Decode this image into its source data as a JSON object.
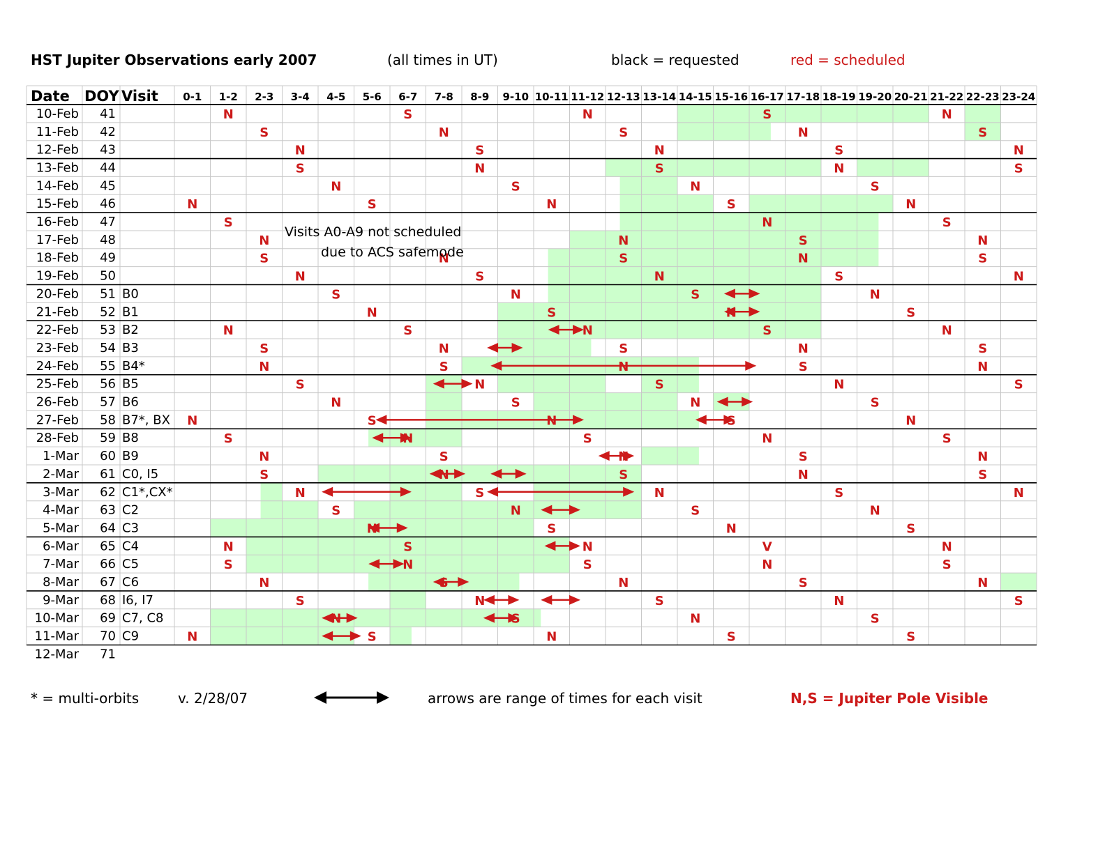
{
  "header": {
    "title": "HST Jupiter Observations early 2007",
    "timezone_note": "(all times in UT)",
    "legend_requested": "black = requested",
    "legend_scheduled": "red = scheduled"
  },
  "colors": {
    "scheduled": "#cc1a1a",
    "window": "#ccffcc",
    "grid": "#c8c8c8",
    "separator": "#000000"
  },
  "table": {
    "headers": {
      "date": "Date",
      "doy": "DOY",
      "visit": "Visit"
    },
    "hours": [
      "0-1",
      "1-2",
      "2-3",
      "3-4",
      "4-5",
      "5-6",
      "6-7",
      "7-8",
      "8-9",
      "9-10",
      "10-11",
      "11-12",
      "12-13",
      "13-14",
      "14-15",
      "15-16",
      "16-17",
      "17-18",
      "18-19",
      "19-20",
      "20-21",
      "21-22",
      "22-23",
      "23-24"
    ],
    "rows": [
      {
        "date": "10-Feb",
        "doy": "41",
        "visit": ""
      },
      {
        "date": "11-Feb",
        "doy": "42",
        "visit": ""
      },
      {
        "date": "12-Feb",
        "doy": "43",
        "visit": ""
      },
      {
        "date": "13-Feb",
        "doy": "44",
        "visit": ""
      },
      {
        "date": "14-Feb",
        "doy": "45",
        "visit": ""
      },
      {
        "date": "15-Feb",
        "doy": "46",
        "visit": ""
      },
      {
        "date": "16-Feb",
        "doy": "47",
        "visit": ""
      },
      {
        "date": "17-Feb",
        "doy": "48",
        "visit": ""
      },
      {
        "date": "18-Feb",
        "doy": "49",
        "visit": ""
      },
      {
        "date": "19-Feb",
        "doy": "50",
        "visit": ""
      },
      {
        "date": "20-Feb",
        "doy": "51",
        "visit": "B0"
      },
      {
        "date": "21-Feb",
        "doy": "52",
        "visit": "B1"
      },
      {
        "date": "22-Feb",
        "doy": "53",
        "visit": "B2"
      },
      {
        "date": "23-Feb",
        "doy": "54",
        "visit": "B3"
      },
      {
        "date": "24-Feb",
        "doy": "55",
        "visit": "B4*"
      },
      {
        "date": "25-Feb",
        "doy": "56",
        "visit": "B5"
      },
      {
        "date": "26-Feb",
        "doy": "57",
        "visit": "B6"
      },
      {
        "date": "27-Feb",
        "doy": "58",
        "visit": "B7*, BX"
      },
      {
        "date": "28-Feb",
        "doy": "59",
        "visit": "B8"
      },
      {
        "date": "1-Mar",
        "doy": "60",
        "visit": "B9"
      },
      {
        "date": "2-Mar",
        "doy": "61",
        "visit": "C0, I5"
      },
      {
        "date": "3-Mar",
        "doy": "62",
        "visit": "C1*,CX*"
      },
      {
        "date": "4-Mar",
        "doy": "63",
        "visit": "C2"
      },
      {
        "date": "5-Mar",
        "doy": "64",
        "visit": "C3"
      },
      {
        "date": "6-Mar",
        "doy": "65",
        "visit": "C4"
      },
      {
        "date": "7-Mar",
        "doy": "66",
        "visit": "C5"
      },
      {
        "date": "8-Mar",
        "doy": "67",
        "visit": "C6"
      },
      {
        "date": "9-Mar",
        "doy": "68",
        "visit": "I6, I7"
      },
      {
        "date": "10-Mar",
        "doy": "69",
        "visit": "C7, C8"
      },
      {
        "date": "11-Mar",
        "doy": "70",
        "visit": "C9"
      },
      {
        "date": "12-Mar",
        "doy": "71",
        "visit": ""
      }
    ],
    "week_separators_after_rows": [
      2,
      5,
      9,
      11,
      14,
      17,
      20,
      23,
      26,
      29
    ],
    "pole_marks": [
      [
        0,
        1,
        "N"
      ],
      [
        0,
        6,
        "S"
      ],
      [
        0,
        11,
        "N"
      ],
      [
        0,
        16,
        "S"
      ],
      [
        0,
        21,
        "N"
      ],
      [
        1,
        2,
        "S"
      ],
      [
        1,
        7,
        "N"
      ],
      [
        1,
        12,
        "S"
      ],
      [
        1,
        17,
        "N"
      ],
      [
        1,
        22,
        "S"
      ],
      [
        2,
        3,
        "N"
      ],
      [
        2,
        8,
        "S"
      ],
      [
        2,
        13,
        "N"
      ],
      [
        2,
        18,
        "S"
      ],
      [
        2,
        23,
        "N"
      ],
      [
        3,
        3,
        "S"
      ],
      [
        3,
        8,
        "N"
      ],
      [
        3,
        13,
        "S"
      ],
      [
        3,
        18,
        "N"
      ],
      [
        3,
        23,
        "S"
      ],
      [
        4,
        4,
        "N"
      ],
      [
        4,
        9,
        "S"
      ],
      [
        4,
        14,
        "N"
      ],
      [
        4,
        19,
        "S"
      ],
      [
        5,
        0,
        "N"
      ],
      [
        5,
        5,
        "S"
      ],
      [
        5,
        10,
        "N"
      ],
      [
        5,
        15,
        "S"
      ],
      [
        5,
        20,
        "N"
      ],
      [
        6,
        1,
        "S"
      ],
      [
        6,
        16,
        "N"
      ],
      [
        6,
        21,
        "S"
      ],
      [
        7,
        2,
        "N"
      ],
      [
        7,
        12,
        "N"
      ],
      [
        7,
        17,
        "S"
      ],
      [
        7,
        22,
        "N"
      ],
      [
        8,
        2,
        "S"
      ],
      [
        8,
        7,
        "N"
      ],
      [
        8,
        12,
        "S"
      ],
      [
        8,
        17,
        "N"
      ],
      [
        8,
        22,
        "S"
      ],
      [
        9,
        3,
        "N"
      ],
      [
        9,
        8,
        "S"
      ],
      [
        9,
        13,
        "N"
      ],
      [
        9,
        18,
        "S"
      ],
      [
        9,
        23,
        "N"
      ],
      [
        10,
        4,
        "S"
      ],
      [
        10,
        9,
        "N"
      ],
      [
        10,
        14,
        "S"
      ],
      [
        10,
        19,
        "N"
      ],
      [
        11,
        5,
        "N"
      ],
      [
        11,
        10,
        "S"
      ],
      [
        11,
        15,
        "N"
      ],
      [
        11,
        20,
        "S"
      ],
      [
        12,
        1,
        "N"
      ],
      [
        12,
        6,
        "S"
      ],
      [
        12,
        11,
        "N"
      ],
      [
        12,
        16,
        "S"
      ],
      [
        12,
        21,
        "N"
      ],
      [
        13,
        2,
        "S"
      ],
      [
        13,
        7,
        "N"
      ],
      [
        13,
        12,
        "S"
      ],
      [
        13,
        17,
        "N"
      ],
      [
        13,
        22,
        "S"
      ],
      [
        14,
        2,
        "N"
      ],
      [
        14,
        7,
        "S"
      ],
      [
        14,
        12,
        "N"
      ],
      [
        14,
        17,
        "S"
      ],
      [
        14,
        22,
        "N"
      ],
      [
        15,
        3,
        "S"
      ],
      [
        15,
        8,
        "N"
      ],
      [
        15,
        13,
        "S"
      ],
      [
        15,
        18,
        "N"
      ],
      [
        15,
        23,
        "S"
      ],
      [
        16,
        4,
        "N"
      ],
      [
        16,
        9,
        "S"
      ],
      [
        16,
        14,
        "N"
      ],
      [
        16,
        19,
        "S"
      ],
      [
        17,
        0,
        "N"
      ],
      [
        17,
        5,
        "S"
      ],
      [
        17,
        10,
        "N"
      ],
      [
        17,
        15,
        "S"
      ],
      [
        17,
        20,
        "N"
      ],
      [
        18,
        1,
        "S"
      ],
      [
        18,
        6,
        "N"
      ],
      [
        18,
        11,
        "S"
      ],
      [
        18,
        16,
        "N"
      ],
      [
        18,
        21,
        "S"
      ],
      [
        19,
        2,
        "N"
      ],
      [
        19,
        7,
        "S"
      ],
      [
        19,
        12,
        "N"
      ],
      [
        19,
        17,
        "S"
      ],
      [
        19,
        22,
        "N"
      ],
      [
        20,
        2,
        "S"
      ],
      [
        20,
        7,
        "N"
      ],
      [
        20,
        12,
        "S"
      ],
      [
        20,
        17,
        "N"
      ],
      [
        20,
        22,
        "S"
      ],
      [
        21,
        3,
        "N"
      ],
      [
        21,
        8,
        "S"
      ],
      [
        21,
        13,
        "N"
      ],
      [
        21,
        18,
        "S"
      ],
      [
        21,
        23,
        "N"
      ],
      [
        22,
        4,
        "S"
      ],
      [
        22,
        9,
        "N"
      ],
      [
        22,
        14,
        "S"
      ],
      [
        22,
        19,
        "N"
      ],
      [
        23,
        5,
        "N"
      ],
      [
        23,
        10,
        "S"
      ],
      [
        23,
        15,
        "N"
      ],
      [
        23,
        20,
        "S"
      ],
      [
        24,
        1,
        "N"
      ],
      [
        24,
        6,
        "S"
      ],
      [
        24,
        11,
        "N"
      ],
      [
        24,
        16,
        "V"
      ],
      [
        24,
        21,
        "N"
      ],
      [
        25,
        1,
        "S"
      ],
      [
        25,
        6,
        "N"
      ],
      [
        25,
        11,
        "S"
      ],
      [
        25,
        16,
        "N"
      ],
      [
        25,
        21,
        "S"
      ],
      [
        26,
        2,
        "N"
      ],
      [
        26,
        7,
        "S"
      ],
      [
        26,
        12,
        "N"
      ],
      [
        26,
        17,
        "S"
      ],
      [
        26,
        22,
        "N"
      ],
      [
        27,
        3,
        "S"
      ],
      [
        27,
        8,
        "N"
      ],
      [
        27,
        13,
        "S"
      ],
      [
        27,
        18,
        "N"
      ],
      [
        27,
        23,
        "S"
      ],
      [
        28,
        4,
        "N"
      ],
      [
        28,
        9,
        "S"
      ],
      [
        28,
        14,
        "N"
      ],
      [
        28,
        19,
        "S"
      ],
      [
        29,
        0,
        "N"
      ],
      [
        29,
        5,
        "S"
      ],
      [
        29,
        10,
        "N"
      ],
      [
        29,
        15,
        "S"
      ],
      [
        29,
        20,
        "S"
      ]
    ],
    "requested_windows": [
      [
        0,
        14,
        17
      ],
      [
        0,
        17,
        21
      ],
      [
        0,
        22,
        23
      ],
      [
        1,
        14,
        16.6
      ],
      [
        1,
        22,
        23
      ],
      [
        3,
        12,
        14
      ],
      [
        3,
        14,
        18
      ],
      [
        3,
        19,
        21
      ],
      [
        4,
        12.4,
        14
      ],
      [
        5,
        12.4,
        15
      ],
      [
        5,
        16,
        20
      ],
      [
        6,
        12.4,
        19.6
      ],
      [
        7,
        11,
        19.6
      ],
      [
        8,
        10.4,
        19.6
      ],
      [
        9,
        10.4,
        18
      ],
      [
        10,
        10.4,
        18
      ],
      [
        11,
        9,
        18
      ],
      [
        12,
        9,
        18
      ],
      [
        13,
        9,
        11.6
      ],
      [
        14,
        8,
        14.6
      ],
      [
        15,
        7,
        8
      ],
      [
        15,
        9,
        12
      ],
      [
        15,
        13,
        14.6
      ],
      [
        16,
        7,
        8
      ],
      [
        16,
        10,
        14
      ],
      [
        16,
        15,
        16
      ],
      [
        17,
        7,
        14.6
      ],
      [
        18,
        5.4,
        8
      ],
      [
        19,
        13,
        14.6
      ],
      [
        20,
        4,
        13
      ],
      [
        21,
        2.4,
        3
      ],
      [
        21,
        6,
        8
      ],
      [
        21,
        10,
        13
      ],
      [
        22,
        2.4,
        4
      ],
      [
        22,
        5,
        13
      ],
      [
        23,
        1,
        10
      ],
      [
        24,
        2,
        11
      ],
      [
        25,
        2,
        11
      ],
      [
        26,
        5.4,
        9.6
      ],
      [
        26,
        23,
        24
      ],
      [
        27,
        6,
        7
      ],
      [
        28,
        1,
        10.2
      ],
      [
        29,
        1,
        5
      ],
      [
        29,
        6,
        6.6
      ]
    ],
    "visit_arrows": [
      [
        10,
        15.3,
        16.3
      ],
      [
        11,
        15.3,
        16.3
      ],
      [
        12,
        10.4,
        11.4
      ],
      [
        13,
        8.7,
        9.7
      ],
      [
        14,
        8.8,
        16.2
      ],
      [
        15,
        7.2,
        8.3
      ],
      [
        16,
        15.1,
        16.1
      ],
      [
        17,
        5.6,
        11.4
      ],
      [
        17,
        14.5,
        15.6
      ],
      [
        18,
        5.5,
        6.6
      ],
      [
        19,
        11.8,
        12.8
      ],
      [
        20,
        7.1,
        8.1
      ],
      [
        20,
        8.8,
        9.8
      ],
      [
        21,
        4.1,
        6.6
      ],
      [
        21,
        8.7,
        12.8
      ],
      [
        22,
        10.2,
        11.3
      ],
      [
        23,
        5.4,
        6.5
      ],
      [
        24,
        10.3,
        11.3
      ],
      [
        25,
        5.4,
        6.4
      ],
      [
        26,
        7.2,
        8.2
      ],
      [
        27,
        8.6,
        9.6
      ],
      [
        27,
        10.2,
        11.3
      ],
      [
        28,
        4.1,
        5.1
      ],
      [
        28,
        8.6,
        9.6
      ],
      [
        29,
        4.1,
        5.2
      ]
    ],
    "notes": {
      "line1": "Visits A0-A9 not scheduled",
      "line2": "due to ACS safemode"
    }
  },
  "footer": {
    "multi_orbits": "* = multi-orbits",
    "version": "v. 2/28/07",
    "arrow_note": "arrows are range of times for each visit",
    "pole_note": "N,S = Jupiter Pole Visible"
  }
}
